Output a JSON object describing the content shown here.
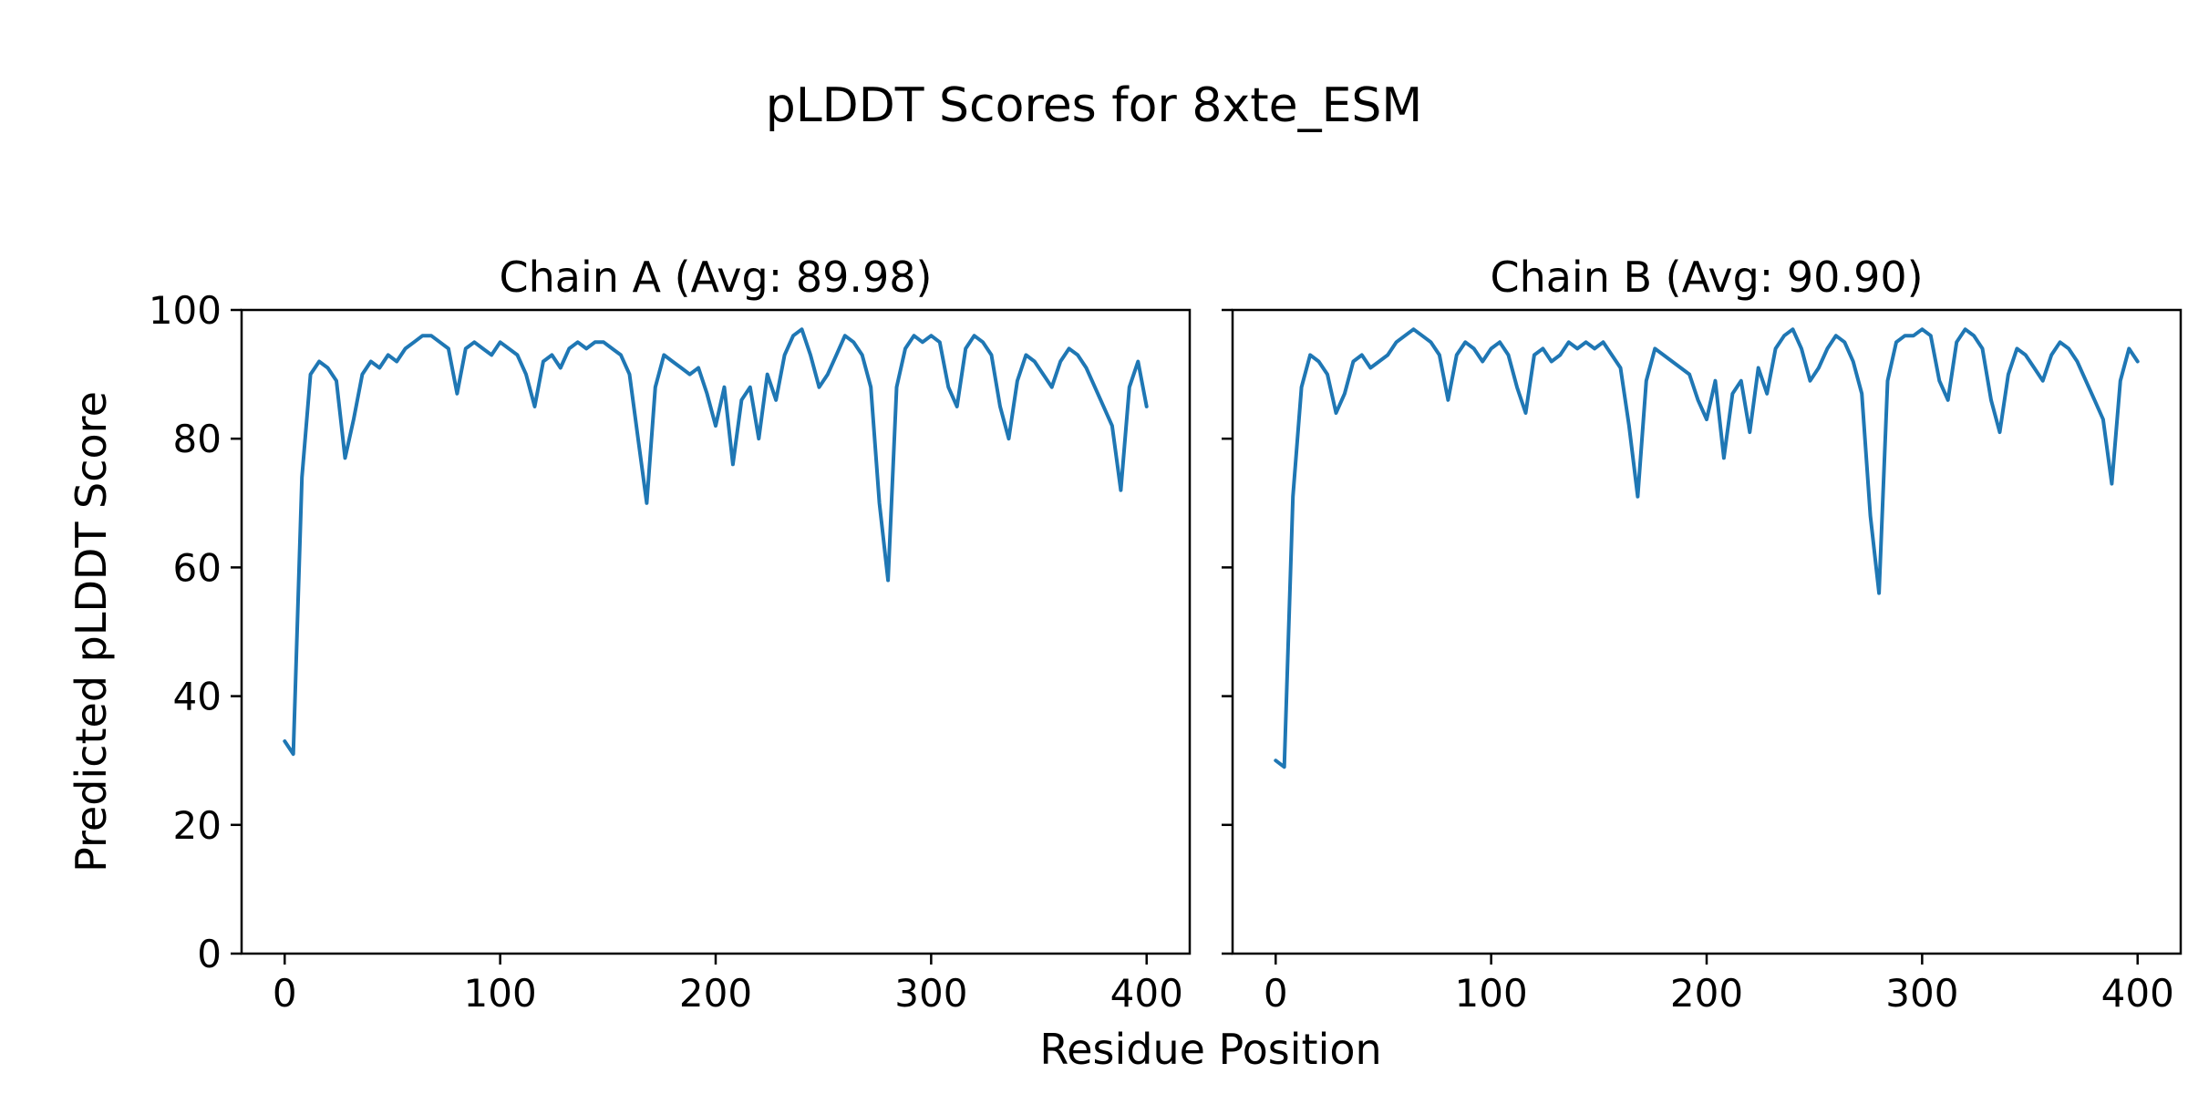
{
  "figure": {
    "title": "pLDDT Scores for 8xte_ESM",
    "xlabel": "Residue Position",
    "ylabel": "Predicted pLDDT Score",
    "background": "#ffffff"
  },
  "chart_data": [
    {
      "type": "line",
      "title": "Chain A (Avg: 89.98)",
      "avg_label": "89.98",
      "line_color": "#1f77b4",
      "xlim": [
        -20,
        420
      ],
      "ylim": [
        0,
        100
      ],
      "xticks": [
        0,
        100,
        200,
        300,
        400
      ],
      "yticks": [
        0,
        20,
        40,
        60,
        80,
        100
      ],
      "show_y_tick_labels": true,
      "x": [
        0,
        4,
        8,
        12,
        16,
        20,
        24,
        28,
        32,
        36,
        40,
        44,
        48,
        52,
        56,
        60,
        64,
        68,
        72,
        76,
        80,
        84,
        88,
        92,
        96,
        100,
        104,
        108,
        112,
        116,
        120,
        124,
        128,
        132,
        136,
        140,
        144,
        148,
        152,
        156,
        160,
        164,
        168,
        172,
        176,
        180,
        184,
        188,
        192,
        196,
        200,
        204,
        208,
        212,
        216,
        220,
        224,
        228,
        232,
        236,
        240,
        244,
        248,
        252,
        256,
        260,
        264,
        268,
        272,
        276,
        280,
        284,
        288,
        292,
        296,
        300,
        304,
        308,
        312,
        316,
        320,
        324,
        328,
        332,
        336,
        340,
        344,
        348,
        352,
        356,
        360,
        364,
        368,
        372,
        376,
        380,
        384,
        388,
        392,
        396,
        400
      ],
      "y": [
        33,
        31,
        74,
        90,
        92,
        91,
        89,
        77,
        83,
        90,
        92,
        91,
        93,
        92,
        94,
        95,
        96,
        96,
        95,
        94,
        87,
        94,
        95,
        94,
        93,
        95,
        94,
        93,
        90,
        85,
        92,
        93,
        91,
        94,
        95,
        94,
        95,
        95,
        94,
        93,
        90,
        80,
        70,
        88,
        93,
        92,
        91,
        90,
        91,
        87,
        82,
        88,
        76,
        86,
        88,
        80,
        90,
        86,
        93,
        96,
        97,
        93,
        88,
        90,
        93,
        96,
        95,
        93,
        88,
        70,
        58,
        88,
        94,
        96,
        95,
        96,
        95,
        88,
        85,
        94,
        96,
        95,
        93,
        85,
        80,
        89,
        93,
        92,
        90,
        88,
        92,
        94,
        93,
        91,
        88,
        85,
        82,
        72,
        88,
        92,
        85
      ]
    },
    {
      "type": "line",
      "title": "Chain B (Avg: 90.90)",
      "avg_label": "90.90",
      "line_color": "#1f77b4",
      "xlim": [
        -20,
        420
      ],
      "ylim": [
        0,
        100
      ],
      "xticks": [
        0,
        100,
        200,
        300,
        400
      ],
      "yticks": [
        0,
        20,
        40,
        60,
        80,
        100
      ],
      "show_y_tick_labels": false,
      "x": [
        0,
        4,
        8,
        12,
        16,
        20,
        24,
        28,
        32,
        36,
        40,
        44,
        48,
        52,
        56,
        60,
        64,
        68,
        72,
        76,
        80,
        84,
        88,
        92,
        96,
        100,
        104,
        108,
        112,
        116,
        120,
        124,
        128,
        132,
        136,
        140,
        144,
        148,
        152,
        156,
        160,
        164,
        168,
        172,
        176,
        180,
        184,
        188,
        192,
        196,
        200,
        204,
        208,
        212,
        216,
        220,
        224,
        228,
        232,
        236,
        240,
        244,
        248,
        252,
        256,
        260,
        264,
        268,
        272,
        276,
        280,
        284,
        288,
        292,
        296,
        300,
        304,
        308,
        312,
        316,
        320,
        324,
        328,
        332,
        336,
        340,
        344,
        348,
        352,
        356,
        360,
        364,
        368,
        372,
        376,
        380,
        384,
        388,
        392,
        396,
        400
      ],
      "y": [
        30,
        29,
        71,
        88,
        93,
        92,
        90,
        84,
        87,
        92,
        93,
        91,
        92,
        93,
        95,
        96,
        97,
        96,
        95,
        93,
        86,
        93,
        95,
        94,
        92,
        94,
        95,
        93,
        88,
        84,
        93,
        94,
        92,
        93,
        95,
        94,
        95,
        94,
        95,
        93,
        91,
        82,
        71,
        89,
        94,
        93,
        92,
        91,
        90,
        86,
        83,
        89,
        77,
        87,
        89,
        81,
        91,
        87,
        94,
        96,
        97,
        94,
        89,
        91,
        94,
        96,
        95,
        92,
        87,
        68,
        56,
        89,
        95,
        96,
        96,
        97,
        96,
        89,
        86,
        95,
        97,
        96,
        94,
        86,
        81,
        90,
        94,
        93,
        91,
        89,
        93,
        95,
        94,
        92,
        89,
        86,
        83,
        73,
        89,
        94,
        92
      ]
    }
  ]
}
